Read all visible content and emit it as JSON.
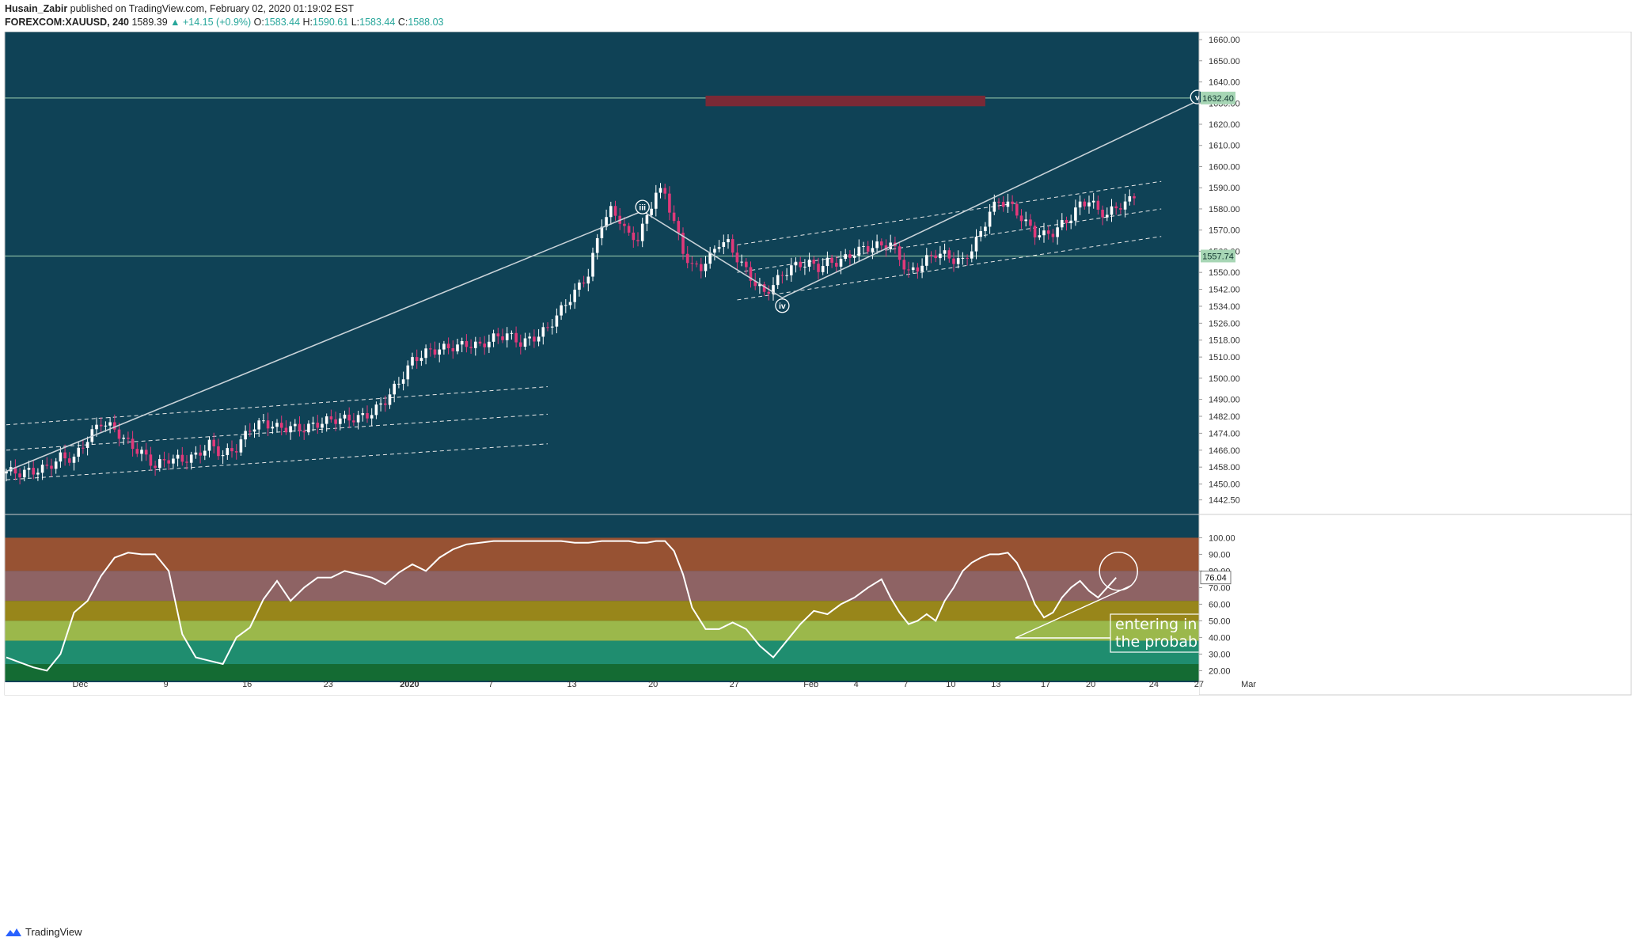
{
  "header": {
    "author": "Husain_Zabir",
    "published": "published on TradingView.com, February 02, 2020 01:19:02 EST",
    "symbol": "FOREXCOM:XAUUSD, 240",
    "last": "1589.39",
    "change": "+14.15 (+0.9%)",
    "o_label": "O:",
    "o_value": "1583.44",
    "h_label": "H:",
    "h_value": "1590.61",
    "l_label": "L:",
    "l_value": "1583.44",
    "c_label": "C:",
    "c_value": "1588.03"
  },
  "footer": {
    "brand": "TradingView"
  },
  "colors": {
    "background": "#0f4256",
    "up_candle": "#ffffff",
    "down_candle": "#e0397a",
    "target_zone": "#7a2936",
    "bands": [
      "#975233",
      "#8e6364",
      "#98861a",
      "#9bb84b",
      "#1f8d6f",
      "#146b33"
    ]
  },
  "chart_data": [
    {
      "type": "candlestick",
      "symbol": "FOREXCOM:XAUUSD",
      "timeframe": "240",
      "ylim": [
        1436,
        1666
      ],
      "y_ticks": [
        "1660.00",
        "1650.00",
        "1640.00",
        "1630.00",
        "1620.00",
        "1610.00",
        "1600.00",
        "1590.00",
        "1580.00",
        "1570.00",
        "1560.00",
        "1550.00",
        "1542.00",
        "1534.00",
        "1526.00",
        "1518.00",
        "1510.00",
        "1500.00",
        "1490.00",
        "1482.00",
        "1474.00",
        "1466.00",
        "1458.00",
        "1450.00",
        "1442.50"
      ],
      "x_ticks": [
        "Dec",
        "9",
        "16",
        "23",
        "2020",
        "7",
        "13",
        "20",
        "27",
        "Feb",
        "4",
        "7",
        "10",
        "13",
        "17",
        "20",
        "24",
        "27",
        "Mar"
      ],
      "price_labels": [
        "1632.40",
        "1557.74"
      ],
      "horizontal_lines": [
        1632.4,
        1557.74
      ],
      "wave_labels": [
        "iii",
        "iv",
        "v"
      ],
      "target_zone": {
        "from": 1628.5,
        "to": 1633.5
      },
      "close_path": [
        [
          0,
          1456
        ],
        [
          3,
          1454
        ],
        [
          6,
          1455
        ],
        [
          9,
          1458
        ],
        [
          12,
          1464
        ],
        [
          15,
          1463
        ],
        [
          18,
          1471
        ],
        [
          21,
          1478
        ],
        [
          24,
          1475
        ],
        [
          27,
          1470
        ],
        [
          30,
          1466
        ],
        [
          33,
          1459
        ],
        [
          36,
          1461
        ],
        [
          39,
          1460
        ],
        [
          42,
          1463
        ],
        [
          45,
          1470
        ],
        [
          48,
          1465
        ],
        [
          51,
          1467
        ],
        [
          54,
          1475
        ],
        [
          57,
          1478
        ],
        [
          60,
          1477
        ],
        [
          63,
          1478
        ],
        [
          66,
          1477
        ],
        [
          69,
          1478
        ],
        [
          72,
          1479
        ],
        [
          75,
          1480
        ],
        [
          78,
          1482
        ],
        [
          81,
          1485
        ],
        [
          84,
          1490
        ],
        [
          87,
          1497
        ],
        [
          90,
          1507
        ],
        [
          93,
          1512
        ],
        [
          96,
          1515
        ],
        [
          99,
          1516
        ],
        [
          102,
          1516
        ],
        [
          105,
          1514
        ],
        [
          108,
          1518
        ],
        [
          111,
          1521
        ],
        [
          114,
          1518
        ],
        [
          117,
          1520
        ],
        [
          120,
          1523
        ],
        [
          123,
          1531
        ],
        [
          126,
          1540
        ],
        [
          129,
          1550
        ],
        [
          132,
          1575
        ],
        [
          134,
          1580
        ],
        [
          136,
          1575
        ],
        [
          138,
          1566
        ],
        [
          140,
          1565
        ],
        [
          142,
          1575
        ],
        [
          144,
          1588
        ],
        [
          146,
          1588
        ],
        [
          148,
          1575
        ],
        [
          150,
          1561
        ],
        [
          152,
          1553
        ],
        [
          154,
          1552
        ],
        [
          156,
          1556
        ],
        [
          158,
          1563
        ],
        [
          160,
          1563
        ],
        [
          162,
          1557
        ],
        [
          164,
          1552
        ],
        [
          166,
          1546
        ],
        [
          168,
          1541
        ],
        [
          170,
          1544
        ],
        [
          172,
          1548
        ],
        [
          174,
          1551
        ],
        [
          176,
          1553
        ],
        [
          178,
          1554
        ],
        [
          180,
          1553
        ],
        [
          182,
          1556
        ],
        [
          184,
          1556
        ],
        [
          186,
          1557
        ],
        [
          188,
          1559
        ],
        [
          190,
          1560
        ],
        [
          192,
          1561
        ],
        [
          194,
          1562
        ],
        [
          196,
          1564
        ],
        [
          198,
          1558
        ],
        [
          200,
          1551
        ],
        [
          202,
          1553
        ],
        [
          204,
          1556
        ],
        [
          206,
          1558
        ],
        [
          208,
          1557
        ],
        [
          210,
          1555
        ],
        [
          212,
          1555
        ],
        [
          214,
          1562
        ],
        [
          216,
          1570
        ],
        [
          218,
          1580
        ],
        [
          220,
          1584
        ],
        [
          222,
          1582
        ],
        [
          224,
          1577
        ],
        [
          226,
          1572
        ],
        [
          228,
          1568
        ],
        [
          230,
          1568
        ],
        [
          232,
          1570
        ],
        [
          234,
          1574
        ],
        [
          236,
          1577
        ],
        [
          238,
          1582
        ],
        [
          240,
          1583
        ],
        [
          242,
          1578
        ],
        [
          244,
          1576
        ],
        [
          246,
          1581
        ],
        [
          248,
          1583
        ],
        [
          250,
          1588
        ]
      ],
      "channels": [
        {
          "from": [
            0,
            1478
          ],
          "to": [
            120,
            1496
          ]
        },
        {
          "from": [
            0,
            1466
          ],
          "to": [
            120,
            1483
          ]
        },
        {
          "from": [
            0,
            1452
          ],
          "to": [
            120,
            1469
          ]
        },
        {
          "from": [
            162,
            1563
          ],
          "to": [
            256,
            1593
          ]
        },
        {
          "from": [
            162,
            1550
          ],
          "to": [
            256,
            1580
          ]
        },
        {
          "from": [
            162,
            1537
          ],
          "to": [
            256,
            1567
          ]
        }
      ],
      "wave_lines": [
        [
          0,
          1456
        ],
        [
          141,
          1579
        ],
        [
          172,
          1538
        ],
        [
          264,
          1631
        ]
      ]
    },
    {
      "type": "line",
      "name": "",
      "ylim": [
        14,
        104
      ],
      "y_ticks": [
        "100.00",
        "90.00",
        "80.00",
        "70.00",
        "60.00",
        "50.00",
        "40.00",
        "30.00",
        "20.00"
      ],
      "last_value_label": "76.04",
      "bands": [
        [
          80,
          100
        ],
        [
          62,
          80
        ],
        [
          50,
          62
        ],
        [
          38,
          50
        ],
        [
          24,
          38
        ],
        [
          14,
          24
        ]
      ],
      "values": [
        [
          0,
          28
        ],
        [
          3,
          25
        ],
        [
          6,
          22
        ],
        [
          9,
          20
        ],
        [
          12,
          30
        ],
        [
          15,
          55
        ],
        [
          18,
          62
        ],
        [
          21,
          77
        ],
        [
          24,
          88
        ],
        [
          27,
          91
        ],
        [
          30,
          90
        ],
        [
          33,
          90
        ],
        [
          36,
          80
        ],
        [
          39,
          42
        ],
        [
          42,
          28
        ],
        [
          45,
          26
        ],
        [
          48,
          24
        ],
        [
          51,
          40
        ],
        [
          54,
          46
        ],
        [
          57,
          63
        ],
        [
          60,
          74
        ],
        [
          63,
          62
        ],
        [
          66,
          70
        ],
        [
          69,
          76
        ],
        [
          72,
          76
        ],
        [
          75,
          80
        ],
        [
          78,
          78
        ],
        [
          81,
          76
        ],
        [
          84,
          72
        ],
        [
          87,
          79
        ],
        [
          90,
          84
        ],
        [
          93,
          80
        ],
        [
          96,
          88
        ],
        [
          99,
          93
        ],
        [
          102,
          96
        ],
        [
          105,
          97
        ],
        [
          108,
          98
        ],
        [
          111,
          98
        ],
        [
          114,
          98
        ],
        [
          117,
          98
        ],
        [
          120,
          98
        ],
        [
          123,
          98
        ],
        [
          126,
          97
        ],
        [
          129,
          97
        ],
        [
          132,
          98
        ],
        [
          135,
          98
        ],
        [
          138,
          98
        ],
        [
          140,
          97
        ],
        [
          142,
          97
        ],
        [
          144,
          98
        ],
        [
          146,
          98
        ],
        [
          148,
          92
        ],
        [
          150,
          78
        ],
        [
          152,
          58
        ],
        [
          155,
          45
        ],
        [
          158,
          45
        ],
        [
          161,
          49
        ],
        [
          164,
          45
        ],
        [
          167,
          35
        ],
        [
          170,
          28
        ],
        [
          173,
          38
        ],
        [
          176,
          48
        ],
        [
          179,
          56
        ],
        [
          182,
          54
        ],
        [
          185,
          60
        ],
        [
          188,
          64
        ],
        [
          191,
          70
        ],
        [
          194,
          75
        ],
        [
          196,
          64
        ],
        [
          198,
          55
        ],
        [
          200,
          48
        ],
        [
          202,
          50
        ],
        [
          204,
          54
        ],
        [
          206,
          50
        ],
        [
          208,
          62
        ],
        [
          210,
          70
        ],
        [
          212,
          80
        ],
        [
          214,
          85
        ],
        [
          216,
          88
        ],
        [
          218,
          90
        ],
        [
          220,
          90
        ],
        [
          222,
          91
        ],
        [
          224,
          85
        ],
        [
          226,
          74
        ],
        [
          228,
          60
        ],
        [
          230,
          52
        ],
        [
          232,
          55
        ],
        [
          234,
          64
        ],
        [
          236,
          70
        ],
        [
          238,
          74
        ],
        [
          240,
          68
        ],
        [
          242,
          64
        ],
        [
          244,
          70
        ],
        [
          246,
          76
        ]
      ],
      "annotation": {
        "line1": "entering in red zone increases",
        "line2": "the probability for a major breakout"
      }
    }
  ]
}
